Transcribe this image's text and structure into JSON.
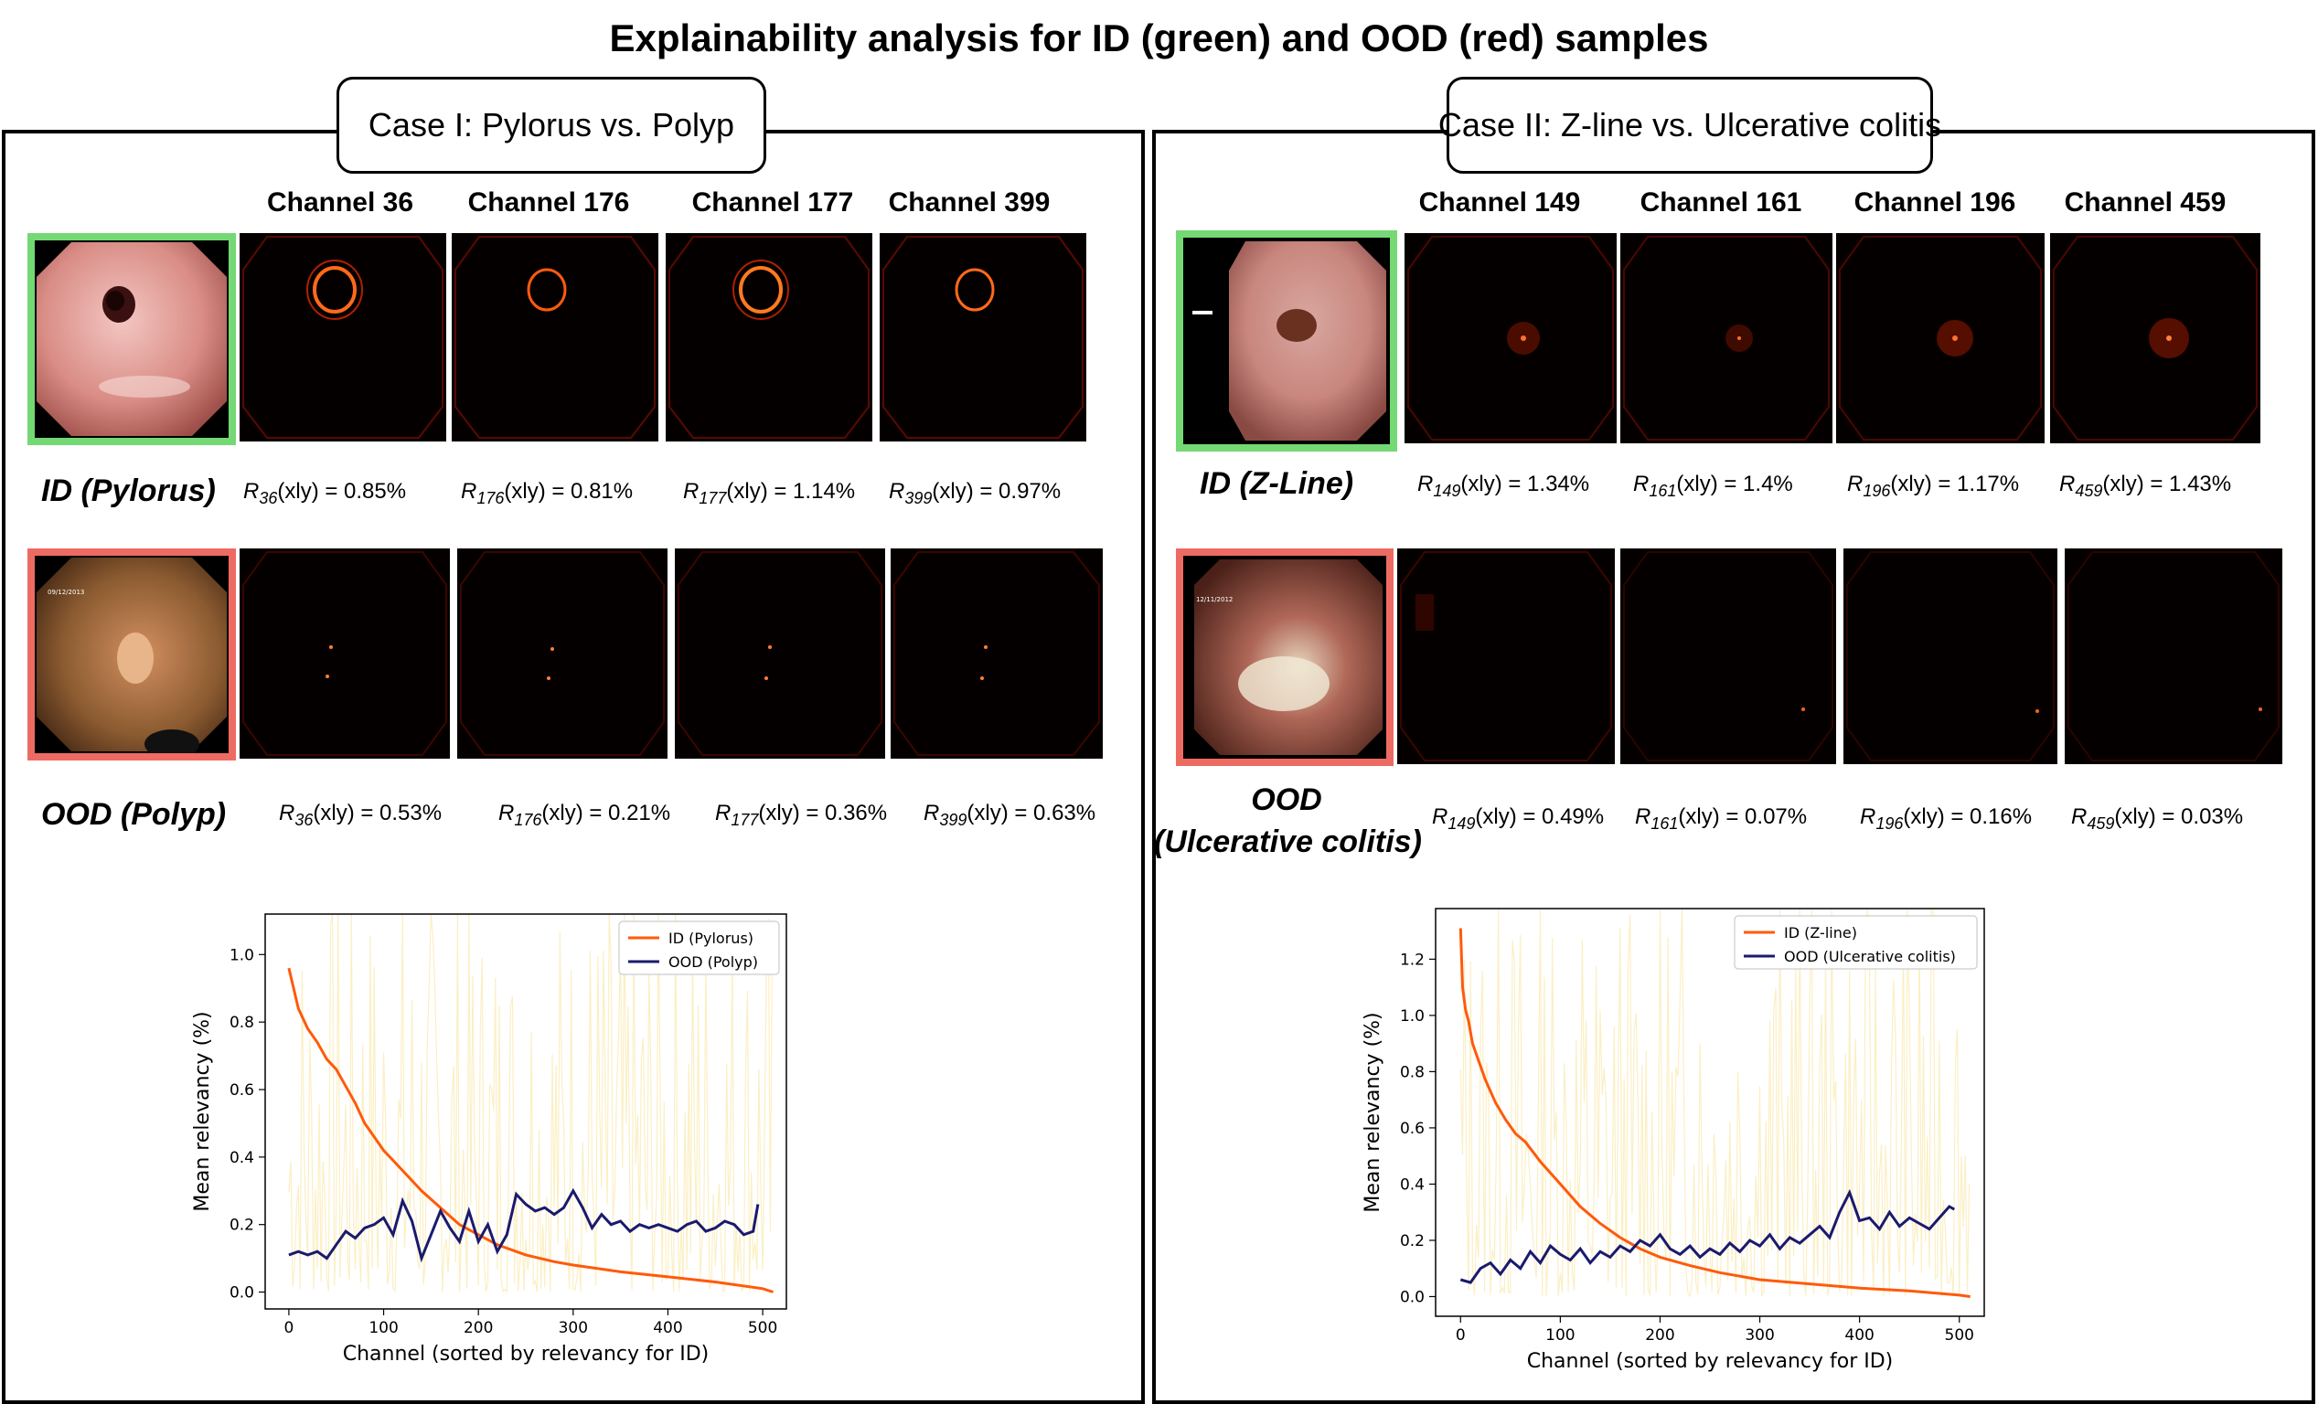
{
  "title": "Explainability analysis for ID (green) and OOD (red) samples",
  "colors": {
    "id_border": "#74d874",
    "ood_border": "#ee6b63",
    "id_line": "#ff5a0a",
    "ood_line": "#1a1a6e",
    "noise": "#fbefc4"
  },
  "cases": [
    {
      "label": "Case I: Pylorus vs. Polyp",
      "channels": [
        "Channel 36",
        "Channel 176",
        "Channel 177",
        "Channel 399"
      ],
      "id_label": "ID (Pylorus)",
      "ood_label": "OOD (Polyp)",
      "id_rel": [
        {
          "sub": "36",
          "text": "(xly) = 0.85%"
        },
        {
          "sub": "176",
          "text": "(xly) = 0.81%"
        },
        {
          "sub": "177",
          "text": "(xly) = 1.14%"
        },
        {
          "sub": "399",
          "text": "(xly) = 0.97%"
        }
      ],
      "ood_rel": [
        {
          "sub": "36",
          "text": "(xly) = 0.53%"
        },
        {
          "sub": "176",
          "text": "(xly) = 0.21%"
        },
        {
          "sub": "177",
          "text": "(xly) = 0.36%"
        },
        {
          "sub": "399",
          "text": "(xly) = 0.63%"
        }
      ]
    },
    {
      "label": "Case II: Z-line vs. Ulcerative colitis",
      "channels": [
        "Channel 149",
        "Channel 161",
        "Channel 196",
        "Channel 459"
      ],
      "id_label": "ID (Z-Line)",
      "ood_label_1": "OOD",
      "ood_label_2": "(Ulcerative colitis)",
      "id_rel": [
        {
          "sub": "149",
          "text": "(xly) = 1.34%"
        },
        {
          "sub": "161",
          "text": "(xly) = 1.4%"
        },
        {
          "sub": "196",
          "text": "(xly) = 1.17%"
        },
        {
          "sub": "459",
          "text": "(xly) = 1.43%"
        }
      ],
      "ood_rel": [
        {
          "sub": "149",
          "text": "(xly) = 0.49%"
        },
        {
          "sub": "161",
          "text": "(xly) = 0.07%"
        },
        {
          "sub": "196",
          "text": "(xly) = 0.16%"
        },
        {
          "sub": "459",
          "text": "(xly) = 0.03%"
        }
      ]
    }
  ],
  "chart_data": [
    {
      "type": "line",
      "xlabel": "Channel (sorted by relevancy for ID)",
      "ylabel": "Mean relevancy (%)",
      "xlim": [
        -25,
        525
      ],
      "ylim": [
        -0.05,
        1.12
      ],
      "xticks": [
        0,
        100,
        200,
        300,
        400,
        500
      ],
      "yticks": [
        0.0,
        0.2,
        0.4,
        0.6,
        0.8,
        1.0
      ],
      "legend": "top-right",
      "series": [
        {
          "name": "ID (Pylorus)",
          "x": [
            0,
            5,
            10,
            20,
            30,
            40,
            50,
            60,
            70,
            80,
            90,
            100,
            120,
            140,
            160,
            180,
            200,
            220,
            250,
            280,
            300,
            350,
            400,
            450,
            500,
            511
          ],
          "values": [
            0.96,
            0.9,
            0.84,
            0.78,
            0.74,
            0.69,
            0.66,
            0.61,
            0.56,
            0.5,
            0.46,
            0.42,
            0.36,
            0.3,
            0.25,
            0.2,
            0.17,
            0.14,
            0.11,
            0.09,
            0.08,
            0.06,
            0.045,
            0.03,
            0.01,
            0.0
          ]
        },
        {
          "name": "OOD (Polyp)",
          "x": [
            0,
            10,
            20,
            30,
            40,
            50,
            60,
            70,
            80,
            90,
            100,
            110,
            120,
            130,
            140,
            150,
            160,
            170,
            180,
            190,
            200,
            210,
            220,
            230,
            240,
            250,
            260,
            270,
            280,
            290,
            300,
            310,
            320,
            330,
            340,
            350,
            360,
            370,
            380,
            390,
            400,
            410,
            420,
            430,
            440,
            450,
            460,
            470,
            480,
            490,
            495
          ],
          "values": [
            0.11,
            0.12,
            0.11,
            0.12,
            0.1,
            0.14,
            0.18,
            0.16,
            0.19,
            0.2,
            0.22,
            0.17,
            0.27,
            0.21,
            0.1,
            0.17,
            0.24,
            0.19,
            0.15,
            0.24,
            0.15,
            0.2,
            0.12,
            0.17,
            0.29,
            0.26,
            0.24,
            0.25,
            0.23,
            0.25,
            0.3,
            0.25,
            0.19,
            0.23,
            0.2,
            0.21,
            0.18,
            0.2,
            0.19,
            0.2,
            0.19,
            0.18,
            0.2,
            0.21,
            0.18,
            0.19,
            0.21,
            0.2,
            0.17,
            0.18,
            0.26
          ]
        }
      ]
    },
    {
      "type": "line",
      "xlabel": "Channel (sorted by relevancy for ID)",
      "ylabel": "Mean relevancy (%)",
      "xlim": [
        -25,
        525
      ],
      "ylim": [
        -0.07,
        1.38
      ],
      "xticks": [
        0,
        100,
        200,
        300,
        400,
        500
      ],
      "yticks": [
        0.0,
        0.2,
        0.4,
        0.6,
        0.8,
        1.0,
        1.2
      ],
      "legend": "top-right",
      "series": [
        {
          "name": "ID (Z-line)",
          "x": [
            0,
            2,
            5,
            8,
            12,
            18,
            25,
            35,
            45,
            55,
            65,
            80,
            100,
            120,
            140,
            160,
            180,
            200,
            230,
            260,
            300,
            350,
            400,
            450,
            500,
            511
          ],
          "values": [
            1.31,
            1.1,
            1.02,
            0.98,
            0.9,
            0.84,
            0.77,
            0.69,
            0.63,
            0.58,
            0.55,
            0.48,
            0.4,
            0.32,
            0.26,
            0.21,
            0.17,
            0.14,
            0.11,
            0.085,
            0.06,
            0.045,
            0.03,
            0.02,
            0.005,
            0.0
          ]
        },
        {
          "name": "OOD (Ulcerative colitis)",
          "x": [
            0,
            10,
            20,
            30,
            40,
            50,
            60,
            70,
            80,
            90,
            100,
            110,
            120,
            130,
            140,
            150,
            160,
            170,
            180,
            190,
            200,
            210,
            220,
            230,
            240,
            250,
            260,
            270,
            280,
            290,
            300,
            310,
            320,
            330,
            340,
            350,
            360,
            370,
            380,
            390,
            400,
            410,
            420,
            430,
            440,
            450,
            460,
            470,
            480,
            490,
            495
          ],
          "values": [
            0.06,
            0.05,
            0.1,
            0.12,
            0.08,
            0.13,
            0.1,
            0.16,
            0.12,
            0.18,
            0.15,
            0.13,
            0.17,
            0.12,
            0.16,
            0.14,
            0.18,
            0.16,
            0.2,
            0.18,
            0.22,
            0.17,
            0.15,
            0.18,
            0.14,
            0.17,
            0.15,
            0.19,
            0.16,
            0.2,
            0.18,
            0.22,
            0.17,
            0.21,
            0.19,
            0.22,
            0.25,
            0.21,
            0.3,
            0.37,
            0.27,
            0.28,
            0.24,
            0.3,
            0.25,
            0.28,
            0.26,
            0.24,
            0.28,
            0.32,
            0.31
          ]
        }
      ]
    }
  ]
}
